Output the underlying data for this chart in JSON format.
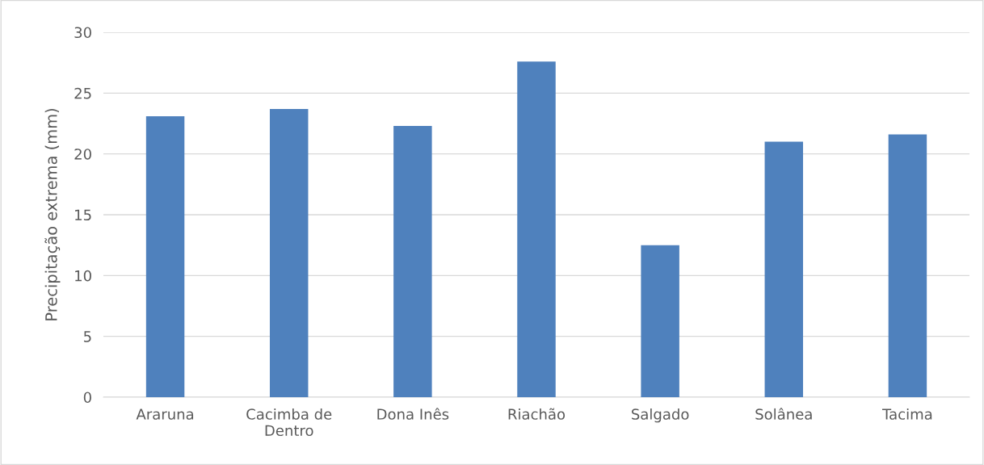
{
  "chart_data": {
    "type": "bar",
    "categories": [
      "Araruna",
      "Cacimba de Dentro",
      "Dona Inês",
      "Riachão",
      "Salgado",
      "Solânea",
      "Tacima"
    ],
    "values": [
      23.1,
      23.7,
      22.3,
      27.6,
      12.5,
      21.0,
      21.6
    ],
    "color": "#4f81bd",
    "ylabel": "Precipitação extrema (mm)",
    "ylim": [
      0,
      30
    ],
    "yticks": [
      0,
      5,
      10,
      15,
      20,
      25,
      30
    ],
    "grid": "y"
  }
}
